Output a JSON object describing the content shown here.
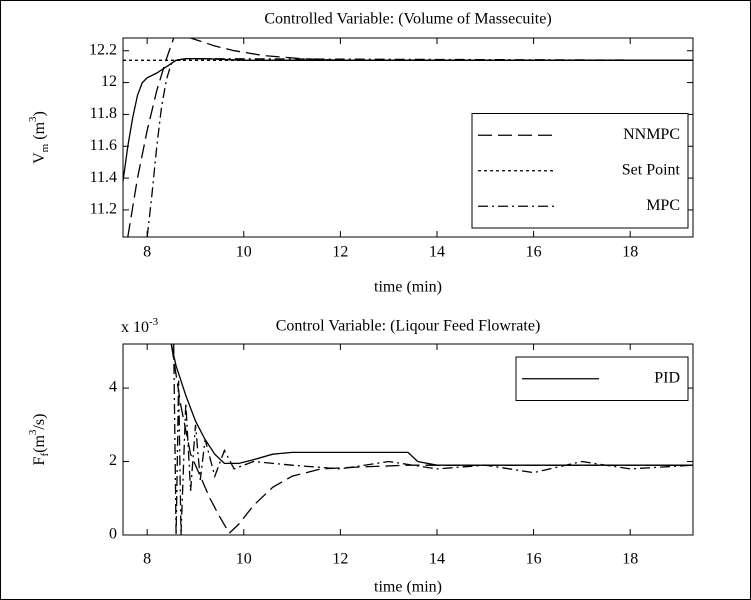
{
  "chart_data": [
    {
      "type": "line",
      "title": "Controlled Variable: (Volume of Massecuite)",
      "xlabel": "time (min)",
      "ylabel_parts": [
        "V",
        "m",
        " (m",
        "3",
        ")"
      ],
      "xlim": [
        7.5,
        19.3
      ],
      "xticks": [
        8,
        10,
        12,
        14,
        16,
        18
      ],
      "ylim": [
        11.03,
        12.28
      ],
      "yticks": [
        11.2,
        11.4,
        11.6,
        11.8,
        12,
        12.2
      ],
      "legend": "lower right",
      "series": [
        {
          "name": null,
          "color": "#000000",
          "dash": "solid",
          "x": [
            7.5,
            7.6,
            7.7,
            7.8,
            7.9,
            8.0,
            8.2,
            8.4,
            8.6,
            8.8,
            9.2,
            10,
            19.3
          ],
          "values": [
            11.38,
            11.6,
            11.78,
            11.92,
            12.0,
            12.03,
            12.06,
            12.1,
            12.14,
            12.15,
            12.15,
            12.14,
            12.14
          ]
        },
        {
          "name": "NNMPC",
          "color": "#000000",
          "dash": "long-dash",
          "x": [
            7.6,
            7.8,
            8.0,
            8.2,
            8.4,
            8.55,
            8.7,
            9.0,
            9.4,
            9.8,
            10.4,
            11.2,
            12,
            19.3
          ],
          "values": [
            11.03,
            11.4,
            11.7,
            11.95,
            12.15,
            12.28,
            12.3,
            12.27,
            12.23,
            12.2,
            12.17,
            12.15,
            12.14,
            12.14
          ]
        },
        {
          "name": "Set Point",
          "color": "#000000",
          "dash": "dotted",
          "x": [
            7.5,
            19.3
          ],
          "values": [
            12.14,
            12.14
          ]
        },
        {
          "name": "MPC",
          "color": "#000000",
          "dash": "dash-dot",
          "x": [
            8.0,
            8.1,
            8.2,
            8.3,
            8.4,
            8.5,
            8.6,
            8.8,
            9,
            19.3
          ],
          "values": [
            11.03,
            11.3,
            11.6,
            11.85,
            12.02,
            12.12,
            12.14,
            12.15,
            12.15,
            12.14
          ]
        }
      ]
    },
    {
      "type": "line",
      "title": "Control Variable: (Liqour Feed Flowrate)",
      "xlabel": "time (min)",
      "ylabel_parts": [
        "F",
        "f",
        "(m",
        "3",
        "/s)"
      ],
      "multiplier": [
        "x 10",
        "-3"
      ],
      "xlim": [
        7.5,
        19.3
      ],
      "xticks": [
        8,
        10,
        12,
        14,
        16,
        18
      ],
      "ylim": [
        0,
        5.2
      ],
      "yticks": [
        0,
        2,
        4
      ],
      "legend": "upper right",
      "series": [
        {
          "name": "PID",
          "color": "#000000",
          "dash": "solid",
          "x": [
            8.5,
            8.6,
            8.8,
            9.0,
            9.2,
            9.4,
            9.6,
            9.9,
            10.2,
            10.6,
            11,
            12,
            13.4,
            13.6,
            14,
            19.3
          ],
          "values": [
            5.2,
            4.6,
            3.8,
            3.1,
            2.6,
            2.2,
            1.95,
            1.95,
            2.05,
            2.2,
            2.25,
            2.25,
            2.25,
            2.0,
            1.9,
            1.9
          ]
        },
        {
          "name": null,
          "color": "#000000",
          "dash": "long-dash",
          "x": [
            8.5,
            8.7,
            8.9,
            9.1,
            9.3,
            9.5,
            9.7,
            9.9,
            10.2,
            10.6,
            11,
            11.6,
            12.4,
            13.4,
            14.5,
            19.3
          ],
          "values": [
            5.2,
            3.5,
            2.2,
            1.6,
            1.0,
            0.5,
            0.05,
            0.3,
            0.8,
            1.3,
            1.6,
            1.8,
            1.85,
            1.9,
            1.9,
            1.9
          ]
        },
        {
          "name": null,
          "color": "#000000",
          "dash": "dash-dot",
          "x": [
            8.55,
            8.6,
            8.65,
            8.7,
            8.8,
            8.9,
            9.0,
            9.1,
            9.2,
            9.4,
            9.6,
            9.8,
            10.2,
            11,
            12,
            13,
            14,
            15,
            16,
            17,
            18,
            19.3
          ],
          "values": [
            5.2,
            0,
            4.2,
            0,
            3.6,
            1.2,
            3.0,
            1.5,
            2.6,
            1.6,
            2.3,
            1.8,
            2.0,
            1.9,
            1.8,
            2.0,
            1.8,
            1.9,
            1.7,
            2.0,
            1.8,
            1.9
          ]
        }
      ]
    }
  ]
}
